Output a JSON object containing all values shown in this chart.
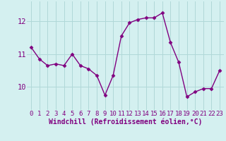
{
  "x": [
    0,
    1,
    2,
    3,
    4,
    5,
    6,
    7,
    8,
    9,
    10,
    11,
    12,
    13,
    14,
    15,
    16,
    17,
    18,
    19,
    20,
    21,
    22,
    23
  ],
  "y": [
    11.2,
    10.85,
    10.65,
    10.7,
    10.65,
    11.0,
    10.65,
    10.55,
    10.35,
    9.75,
    10.35,
    11.55,
    11.95,
    12.05,
    12.1,
    12.1,
    12.25,
    11.35,
    10.75,
    9.7,
    9.85,
    9.95,
    9.95,
    10.5
  ],
  "line_color": "#800080",
  "marker": "D",
  "marker_size": 2.5,
  "bg_color": "#d4f0f0",
  "grid_color": "#b0d8d8",
  "xlabel": "Windchill (Refroidissement éolien,°C)",
  "xlabel_fontsize": 7,
  "xtick_labels": [
    "0",
    "1",
    "2",
    "3",
    "4",
    "5",
    "6",
    "7",
    "8",
    "9",
    "10",
    "11",
    "12",
    "13",
    "14",
    "15",
    "16",
    "17",
    "18",
    "19",
    "20",
    "21",
    "22",
    "23"
  ],
  "ytick_vals": [
    10,
    11,
    12
  ],
  "ylim": [
    9.3,
    12.6
  ],
  "xlim": [
    -0.5,
    23.5
  ],
  "line_width": 1.0,
  "tick_fontsize": 6.5,
  "ytick_fontsize": 7.5
}
